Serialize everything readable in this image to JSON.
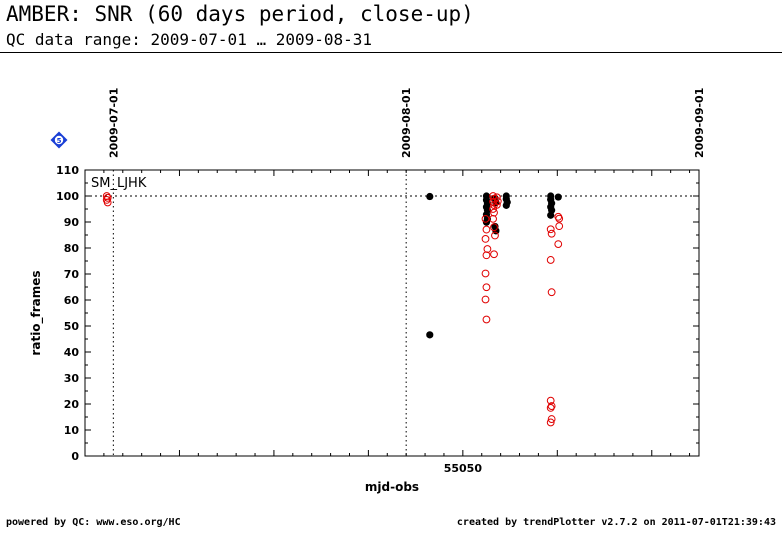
{
  "header": {
    "title": "AMBER: SNR (60 days period, close-up)",
    "subtitle": "QC data range: 2009-07-01 … 2009-08-31"
  },
  "footer": {
    "left": "powered by QC: www.eso.org/HC",
    "right": "created by trendPlotter v2.7.2 on 2011-07-01T21:39:43"
  },
  "chart_data": {
    "type": "scatter",
    "panel_label": "SM_LJHK",
    "badge": "5",
    "xlabel": "mjd-obs",
    "ylabel": "ratio_frames",
    "xlim": [
      55010,
      55075
    ],
    "ylim": [
      0,
      110
    ],
    "x_ticks": [
      55020,
      55030,
      55040,
      55050,
      55060,
      55070
    ],
    "x_tick_labels": [
      "55050"
    ],
    "x_tick_label_at": [
      55050
    ],
    "y_ticks": [
      0,
      10,
      20,
      30,
      40,
      50,
      60,
      70,
      80,
      90,
      100,
      110
    ],
    "reference_line": 100,
    "date_markers": [
      {
        "x": 55013.0,
        "label": "2009-07-01"
      },
      {
        "x": 55044.0,
        "label": "2009-08-01"
      },
      {
        "x": 55075.0,
        "label": "2009-09-01"
      }
    ],
    "colors": {
      "black_series": "#000000",
      "red_series": "#e00000",
      "badge": "#1a3fd6"
    },
    "series": [
      {
        "marker": "filled-black",
        "points": [
          [
            55046.5,
            99.8
          ],
          [
            55046.5,
            46.6
          ],
          [
            55052.5,
            100
          ],
          [
            55052.5,
            98.5
          ],
          [
            55052.6,
            97.3
          ],
          [
            55052.5,
            95.8
          ],
          [
            55052.6,
            94.6
          ],
          [
            55052.5,
            92.8
          ],
          [
            55052.6,
            91.1
          ],
          [
            55052.5,
            89.9
          ],
          [
            55053.4,
            88.3
          ],
          [
            55053.5,
            86.6
          ],
          [
            55053.4,
            99.1
          ],
          [
            55053.5,
            97.5
          ],
          [
            55054.6,
            100
          ],
          [
            55054.6,
            98.8
          ],
          [
            55054.7,
            97.6
          ],
          [
            55054.6,
            96.4
          ],
          [
            55059.3,
            100
          ],
          [
            55059.3,
            98.6
          ],
          [
            55059.4,
            97.2
          ],
          [
            55059.3,
            95.8
          ],
          [
            55059.4,
            94.5
          ],
          [
            55059.3,
            92.6
          ],
          [
            55060.1,
            99.6
          ]
        ]
      },
      {
        "marker": "open-red",
        "points": [
          [
            55012.3,
            100
          ],
          [
            55012.4,
            99.3
          ],
          [
            55012.3,
            98.5
          ],
          [
            55012.4,
            97.5
          ],
          [
            55052.4,
            91.2
          ],
          [
            55052.5,
            87.1
          ],
          [
            55052.4,
            83.5
          ],
          [
            55052.6,
            79.6
          ],
          [
            55052.5,
            77.2
          ],
          [
            55052.4,
            70.2
          ],
          [
            55052.5,
            64.9
          ],
          [
            55052.4,
            60.2
          ],
          [
            55052.5,
            52.5
          ],
          [
            55053.2,
            100
          ],
          [
            55053.3,
            99.0
          ],
          [
            55053.2,
            97.8
          ],
          [
            55053.3,
            96.5
          ],
          [
            55053.2,
            95.0
          ],
          [
            55053.3,
            93.6
          ],
          [
            55053.2,
            91.2
          ],
          [
            55053.3,
            88.0
          ],
          [
            55053.4,
            84.8
          ],
          [
            55053.3,
            77.6
          ],
          [
            55053.6,
            99.5
          ],
          [
            55053.7,
            98.0
          ],
          [
            55053.6,
            96.6
          ],
          [
            55059.3,
            87.2
          ],
          [
            55059.4,
            85.5
          ],
          [
            55059.3,
            75.4
          ],
          [
            55059.4,
            63.0
          ],
          [
            55059.3,
            21.3
          ],
          [
            55059.4,
            19.2
          ],
          [
            55059.3,
            18.5
          ],
          [
            55059.4,
            14.2
          ],
          [
            55059.3,
            12.9
          ],
          [
            55060.1,
            92.0
          ],
          [
            55060.2,
            88.4
          ],
          [
            55060.1,
            81.5
          ],
          [
            55060.2,
            91.3
          ]
        ]
      }
    ]
  }
}
